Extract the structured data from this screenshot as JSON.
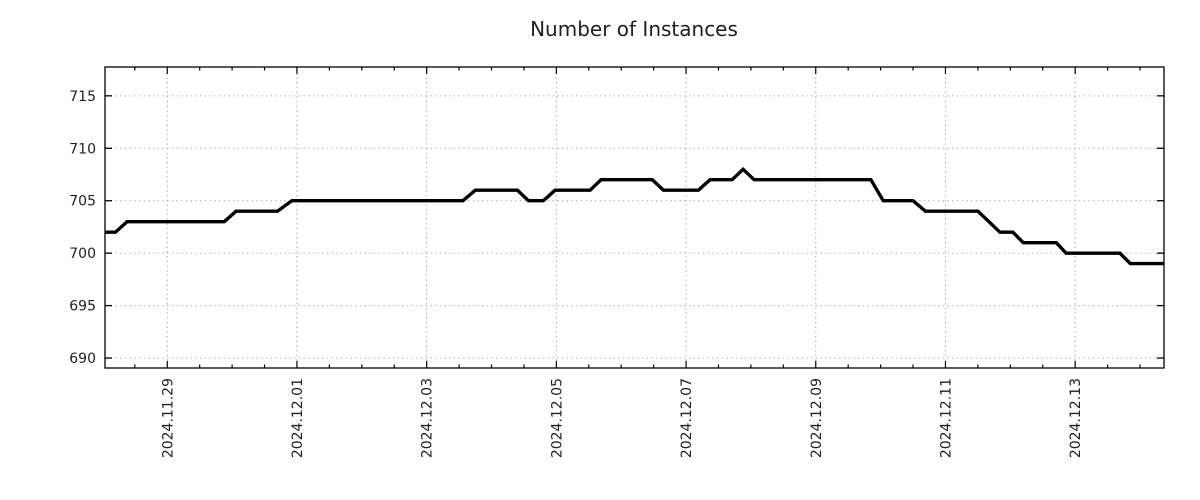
{
  "chart_data": {
    "type": "line",
    "title": "Number of Instances",
    "xlabel": "",
    "ylabel": "",
    "legend": null,
    "grid": "dotted-major",
    "xlim_days": [
      -0.96,
      15.37
    ],
    "ylim": [
      689.05,
      717.75
    ],
    "x_ticks": [
      {
        "day": 0,
        "label": "2024.11.29"
      },
      {
        "day": 2,
        "label": "2024.12.01"
      },
      {
        "day": 4,
        "label": "2024.12.03"
      },
      {
        "day": 6,
        "label": "2024.12.05"
      },
      {
        "day": 8,
        "label": "2024.12.07"
      },
      {
        "day": 10,
        "label": "2024.12.09"
      },
      {
        "day": 12,
        "label": "2024.12.11"
      },
      {
        "day": 14,
        "label": "2024.12.13"
      }
    ],
    "minor_x_tick_step_days": 0.5,
    "y_ticks": [
      {
        "value": 690,
        "label": "690"
      },
      {
        "value": 695,
        "label": "695"
      },
      {
        "value": 700,
        "label": "700"
      },
      {
        "value": 705,
        "label": "705"
      },
      {
        "value": 710,
        "label": "710"
      },
      {
        "value": 715,
        "label": "715"
      }
    ],
    "series": [
      {
        "name": "instances",
        "color": "#000000",
        "points": [
          [
            -0.96,
            702
          ],
          [
            -0.8,
            702
          ],
          [
            -0.62,
            703
          ],
          [
            0.88,
            703
          ],
          [
            1.06,
            704
          ],
          [
            1.7,
            704
          ],
          [
            1.92,
            705
          ],
          [
            4.56,
            705
          ],
          [
            4.75,
            706
          ],
          [
            5.4,
            706
          ],
          [
            5.57,
            705
          ],
          [
            5.8,
            705
          ],
          [
            5.98,
            706
          ],
          [
            6.52,
            706
          ],
          [
            6.69,
            707
          ],
          [
            7.48,
            707
          ],
          [
            7.65,
            706
          ],
          [
            8.19,
            706
          ],
          [
            8.37,
            707
          ],
          [
            8.71,
            707
          ],
          [
            8.88,
            708
          ],
          [
            9.05,
            707
          ],
          [
            10.85,
            707
          ],
          [
            11.04,
            705
          ],
          [
            11.5,
            705
          ],
          [
            11.69,
            704
          ],
          [
            12.5,
            704
          ],
          [
            12.67,
            703
          ],
          [
            12.84,
            702
          ],
          [
            13.04,
            702
          ],
          [
            13.2,
            701
          ],
          [
            13.71,
            701
          ],
          [
            13.86,
            700
          ],
          [
            14.69,
            700
          ],
          [
            14.85,
            699
          ],
          [
            15.37,
            699
          ]
        ]
      }
    ],
    "colors": {
      "line": "#000000",
      "grid": "#a9a9a9",
      "axis": "#000000",
      "text": "#1f1f1f",
      "background": "#ffffff"
    }
  }
}
